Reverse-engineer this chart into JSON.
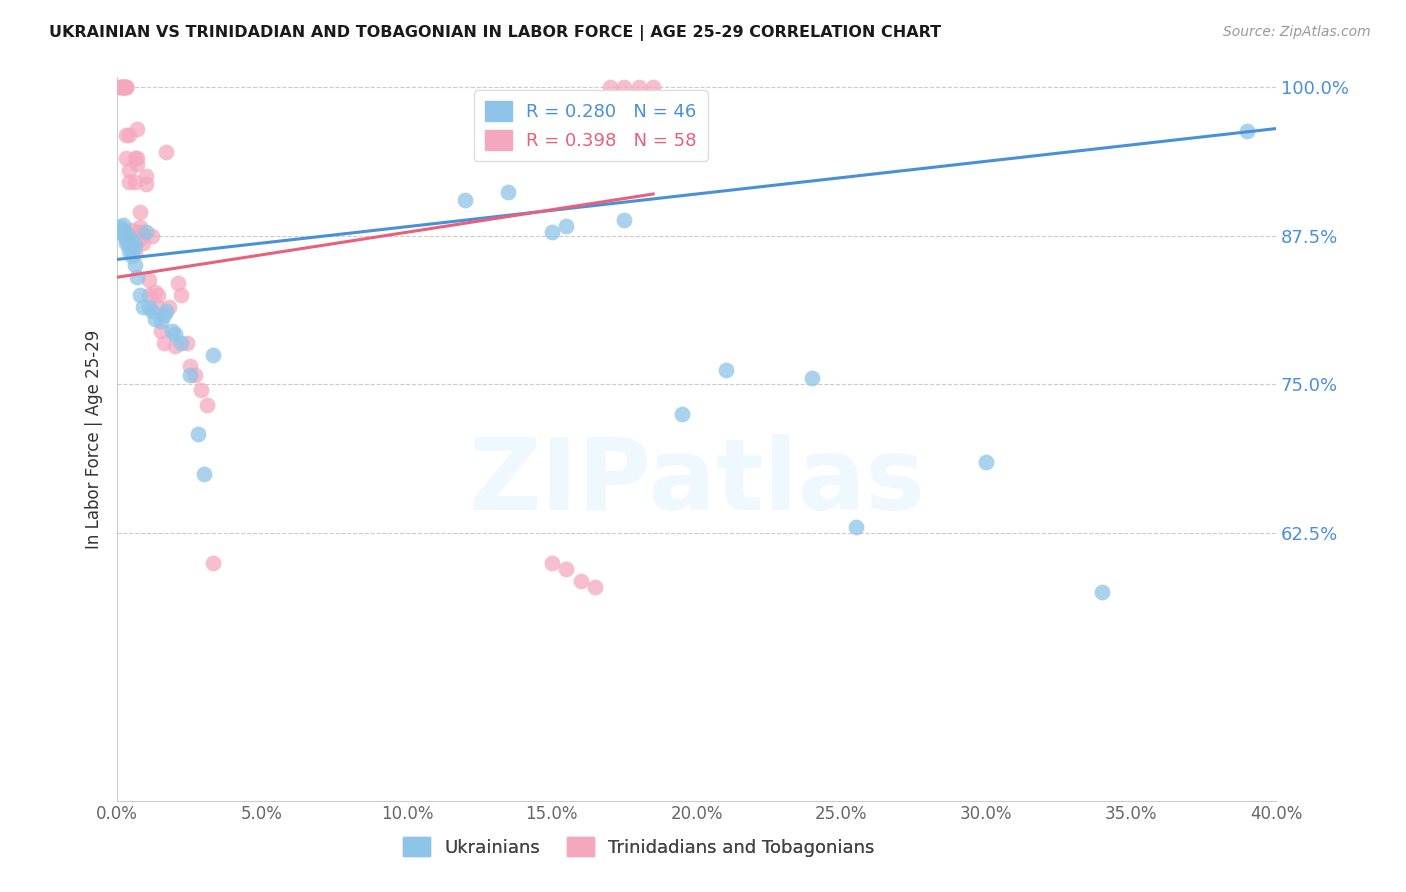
{
  "title": "UKRAINIAN VS TRINIDADIAN AND TOBAGONIAN IN LABOR FORCE | AGE 25-29 CORRELATION CHART",
  "source": "Source: ZipAtlas.com",
  "ylabel": "In Labor Force | Age 25-29",
  "xlim": [
    0.0,
    0.4
  ],
  "ylim": [
    0.4,
    1.008
  ],
  "yticks": [
    0.625,
    0.75,
    0.875,
    1.0
  ],
  "xticks": [
    0.0,
    0.05,
    0.1,
    0.15,
    0.2,
    0.25,
    0.3,
    0.35,
    0.4
  ],
  "blue_R": 0.28,
  "blue_N": 46,
  "pink_R": 0.398,
  "pink_N": 58,
  "blue_color": "#8ec4e8",
  "pink_color": "#f4a8be",
  "blue_line_color": "#4a90d9",
  "pink_line_color": "#e8607a",
  "legend_labels": [
    "Ukrainians",
    "Trinidadians and Tobagonians"
  ],
  "watermark": "ZIPatlas",
  "blue_x": [
    0.001,
    0.001,
    0.002,
    0.002,
    0.002,
    0.003,
    0.003,
    0.003,
    0.003,
    0.004,
    0.004,
    0.004,
    0.005,
    0.005,
    0.005,
    0.006,
    0.006,
    0.007,
    0.008,
    0.009,
    0.01,
    0.011,
    0.012,
    0.013,
    0.015,
    0.016,
    0.017,
    0.019,
    0.02,
    0.022,
    0.025,
    0.028,
    0.03,
    0.033,
    0.12,
    0.135,
    0.15,
    0.155,
    0.175,
    0.195,
    0.21,
    0.24,
    0.255,
    0.3,
    0.34,
    0.39
  ],
  "blue_y": [
    0.878,
    0.882,
    0.876,
    0.88,
    0.884,
    0.872,
    0.877,
    0.874,
    0.869,
    0.873,
    0.867,
    0.862,
    0.871,
    0.863,
    0.858,
    0.866,
    0.85,
    0.84,
    0.825,
    0.815,
    0.878,
    0.815,
    0.812,
    0.805,
    0.803,
    0.808,
    0.812,
    0.795,
    0.792,
    0.785,
    0.758,
    0.708,
    0.675,
    0.775,
    0.905,
    0.912,
    0.878,
    0.883,
    0.888,
    0.725,
    0.762,
    0.755,
    0.63,
    0.685,
    0.575,
    0.963
  ],
  "pink_x": [
    0.001,
    0.001,
    0.002,
    0.002,
    0.002,
    0.002,
    0.003,
    0.003,
    0.003,
    0.003,
    0.003,
    0.004,
    0.004,
    0.004,
    0.005,
    0.005,
    0.005,
    0.006,
    0.006,
    0.006,
    0.007,
    0.007,
    0.007,
    0.008,
    0.008,
    0.008,
    0.008,
    0.009,
    0.009,
    0.01,
    0.01,
    0.011,
    0.011,
    0.012,
    0.013,
    0.014,
    0.014,
    0.015,
    0.016,
    0.017,
    0.018,
    0.02,
    0.021,
    0.022,
    0.024,
    0.025,
    0.027,
    0.029,
    0.031,
    0.033,
    0.15,
    0.155,
    0.16,
    0.165,
    0.17,
    0.175,
    0.18,
    0.185
  ],
  "pink_y": [
    1.0,
    1.0,
    1.0,
    1.0,
    1.0,
    1.0,
    1.0,
    1.0,
    1.0,
    0.96,
    0.94,
    0.93,
    0.96,
    0.92,
    0.88,
    0.875,
    0.87,
    0.94,
    0.92,
    0.86,
    0.965,
    0.94,
    0.935,
    0.882,
    0.895,
    0.878,
    0.872,
    0.876,
    0.869,
    0.925,
    0.918,
    0.838,
    0.825,
    0.875,
    0.828,
    0.825,
    0.815,
    0.795,
    0.785,
    0.945,
    0.815,
    0.782,
    0.835,
    0.825,
    0.785,
    0.765,
    0.758,
    0.745,
    0.733,
    0.6,
    0.6,
    0.595,
    0.585,
    0.58,
    1.0,
    1.0,
    1.0,
    1.0
  ],
  "blue_trend_x": [
    0.0,
    0.4
  ],
  "blue_trend_y": [
    0.855,
    0.965
  ],
  "pink_trend_x": [
    0.0,
    0.185
  ],
  "pink_trend_y": [
    0.84,
    0.91
  ]
}
